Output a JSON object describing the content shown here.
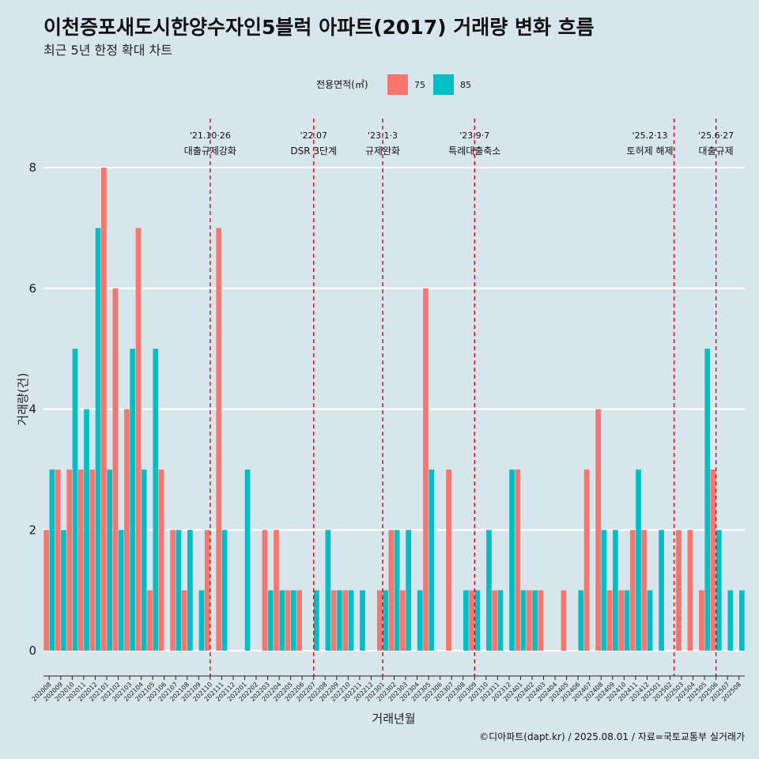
{
  "chart_data": {
    "type": "bar",
    "title": "이천증포새도시한양수자인5블럭 아파트(2017) 거래량 변화 흐름",
    "subtitle": "최근 5년 한정 확대 차트",
    "xlabel": "거래년월",
    "ylabel": "거래량(건)",
    "ylim": [
      0,
      8
    ],
    "yticks": [
      0,
      2,
      4,
      6,
      8
    ],
    "grid": true,
    "legend": {
      "title": "전용면적(㎡)",
      "placement": "top"
    },
    "colors": {
      "75": "#f8766d",
      "85": "#00bfc4",
      "background": "#d7e5ec",
      "event_line": "#e8000b"
    },
    "categories": [
      "202008",
      "202009",
      "202010",
      "202011",
      "202012",
      "202101",
      "202102",
      "202103",
      "202104",
      "202105",
      "202106",
      "202107",
      "202108",
      "202109",
      "202110",
      "202111",
      "202112",
      "202201",
      "202202",
      "202203",
      "202204",
      "202205",
      "202206",
      "202207",
      "202208",
      "202209",
      "202210",
      "202211",
      "202212",
      "202301",
      "202302",
      "202303",
      "202304",
      "202305",
      "202306",
      "202307",
      "202308",
      "202309",
      "202310",
      "202311",
      "202312",
      "202401",
      "202402",
      "202403",
      "202404",
      "202405",
      "202406",
      "202407",
      "202408",
      "202409",
      "202410",
      "202411",
      "202412",
      "202501",
      "202502",
      "202503",
      "202504",
      "202505",
      "202506",
      "202507",
      "202508"
    ],
    "series": [
      {
        "name": "75",
        "values": [
          2,
          3,
          3,
          3,
          3,
          8,
          6,
          4,
          7,
          1,
          3,
          2,
          1,
          0,
          2,
          7,
          0,
          0,
          0,
          2,
          2,
          1,
          1,
          0,
          0,
          1,
          1,
          0,
          0,
          1,
          2,
          1,
          0,
          6,
          0,
          3,
          0,
          1,
          0,
          1,
          0,
          3,
          1,
          1,
          0,
          1,
          0,
          3,
          4,
          1,
          1,
          2,
          2,
          0,
          0,
          2,
          2,
          1,
          3,
          0,
          0
        ]
      },
      {
        "name": "85",
        "values": [
          3,
          2,
          5,
          4,
          7,
          3,
          2,
          5,
          3,
          5,
          0,
          2,
          2,
          1,
          0,
          2,
          0,
          3,
          0,
          1,
          1,
          1,
          0,
          1,
          2,
          1,
          1,
          1,
          0,
          1,
          2,
          2,
          1,
          3,
          0,
          0,
          1,
          1,
          2,
          1,
          3,
          1,
          1,
          0,
          0,
          0,
          1,
          0,
          2,
          2,
          1,
          3,
          1,
          2,
          0,
          0,
          0,
          5,
          2,
          1,
          1
        ]
      }
    ],
    "events": [
      {
        "at": "202110",
        "offset": 0,
        "date": "'21.10·26",
        "label": "대출규제강화",
        "date_align": "center",
        "label_align": "center"
      },
      {
        "at": "202207",
        "offset": 0,
        "date": "'22.07",
        "label": "DSR 3단계",
        "date_align": "center",
        "label_align": "center"
      },
      {
        "at": "202301",
        "offset": 0,
        "date": "'23.1·3",
        "label": "규제완화",
        "date_align": "center",
        "label_align": "center"
      },
      {
        "at": "202309",
        "offset": 0,
        "date": "'23.9·7",
        "label": "특례대출축소",
        "date_align": "center",
        "label_align": "center"
      },
      {
        "at": "202502",
        "offset": 0.35,
        "date": "'25.2·13",
        "label": "토허제 해제",
        "date_align": "end",
        "label_align": "end"
      },
      {
        "at": "202506",
        "offset": 0,
        "date": "'25.6·27",
        "label": "대출규제",
        "date_align": "center",
        "label_align": "center"
      }
    ],
    "caption": "©디아파트(dapt.kr) / 2025.08.01 / 자료=국토교통부 실거래가"
  }
}
